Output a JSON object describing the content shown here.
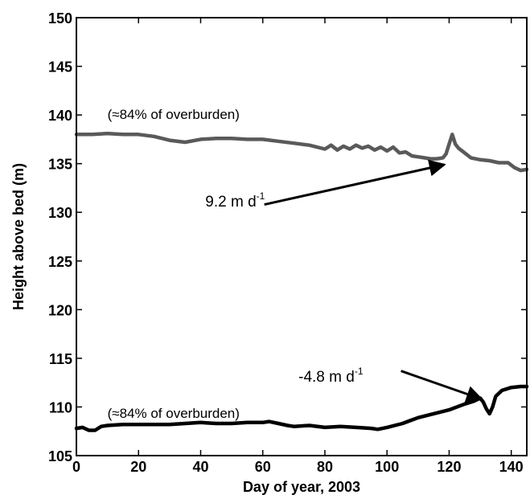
{
  "chart_data": {
    "type": "line",
    "xlabel": "Day of year, 2003",
    "ylabel": "Height above bed (m)",
    "xlim": [
      0,
      145
    ],
    "ylim": [
      105,
      150
    ],
    "xticks": [
      0,
      20,
      40,
      60,
      80,
      100,
      120,
      140
    ],
    "yticks": [
      105,
      110,
      115,
      120,
      125,
      130,
      135,
      140,
      145,
      150
    ],
    "grid": false,
    "series": [
      {
        "color": "#5a5a5a",
        "x": [
          0,
          5,
          10,
          15,
          20,
          25,
          30,
          35,
          40,
          45,
          50,
          55,
          60,
          65,
          70,
          75,
          80,
          82,
          84,
          86,
          88,
          90,
          92,
          94,
          96,
          98,
          100,
          102,
          104,
          106,
          108,
          110,
          112,
          114,
          116,
          118,
          119,
          120,
          121,
          122,
          123,
          125,
          127,
          130,
          133,
          136,
          139,
          141,
          143,
          145
        ],
        "y": [
          138.0,
          138.0,
          138.1,
          138.0,
          138.0,
          137.8,
          137.4,
          137.2,
          137.5,
          137.6,
          137.6,
          137.5,
          137.5,
          137.3,
          137.1,
          136.9,
          136.5,
          136.9,
          136.4,
          136.8,
          136.5,
          136.9,
          136.6,
          136.8,
          136.4,
          136.7,
          136.3,
          136.7,
          136.1,
          136.2,
          135.8,
          135.7,
          135.6,
          135.5,
          135.5,
          135.6,
          136.0,
          137.0,
          138.0,
          137.0,
          136.6,
          136.1,
          135.6,
          135.4,
          135.3,
          135.1,
          135.1,
          134.6,
          134.3,
          134.4
        ]
      },
      {
        "color": "#000000",
        "x": [
          0,
          2,
          4,
          6,
          8,
          10,
          15,
          20,
          25,
          30,
          35,
          40,
          45,
          50,
          55,
          60,
          62,
          65,
          68,
          70,
          75,
          80,
          85,
          90,
          95,
          97,
          100,
          105,
          110,
          115,
          120,
          125,
          128,
          130,
          131,
          132,
          133,
          134,
          135,
          137,
          140,
          143,
          145
        ],
        "y": [
          107.8,
          107.9,
          107.6,
          107.6,
          108.0,
          108.1,
          108.2,
          108.2,
          108.2,
          108.2,
          108.3,
          108.4,
          108.3,
          108.3,
          108.4,
          108.4,
          108.5,
          108.3,
          108.1,
          108.0,
          108.1,
          107.9,
          108.0,
          107.9,
          107.8,
          107.7,
          107.9,
          108.3,
          108.9,
          109.3,
          109.7,
          110.3,
          110.6,
          110.9,
          110.5,
          109.8,
          109.3,
          110.0,
          111.1,
          111.7,
          112.0,
          112.1,
          112.1
        ]
      }
    ],
    "annotations": [
      {
        "text": "(≈84% of overburden)",
        "x": 10,
        "y": 139.6
      },
      {
        "text": "(≈84% of overburden)",
        "x": 10,
        "y": 108.9
      },
      {
        "rate": "9.2 m d",
        "sup": "-1",
        "x": 41.5,
        "y": 130.6,
        "arrow_from": [
          60.5,
          130.8
        ],
        "arrow_to": [
          118.5,
          134.9
        ]
      },
      {
        "rate": "-4.8 m d",
        "sup": "-1",
        "x": 71.5,
        "y": 112.6,
        "arrow_from": [
          104.5,
          113.7
        ],
        "arrow_to": [
          130.5,
          110.8
        ]
      }
    ]
  }
}
